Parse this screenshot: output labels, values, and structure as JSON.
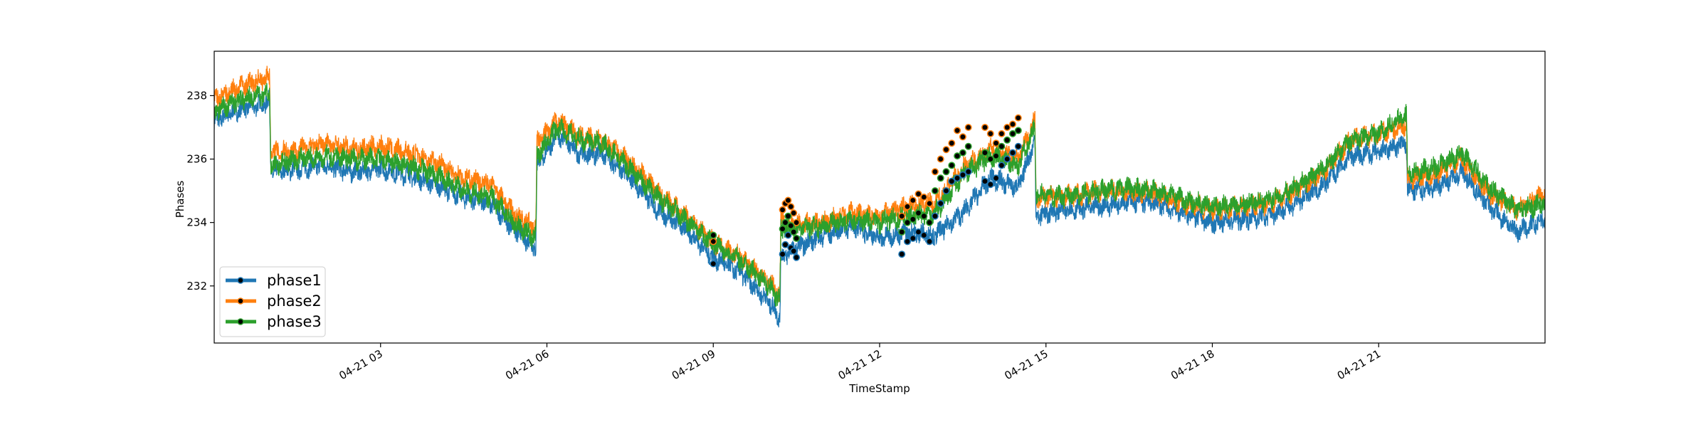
{
  "chart_data": {
    "type": "line",
    "title": "",
    "xlabel": "TimeStamp",
    "ylabel": "Phases",
    "xlim": [
      "04-21 00:00",
      "04-22 00:00"
    ],
    "ylim": [
      230.2,
      239.4
    ],
    "x_ticks": [
      {
        "t": 3,
        "label": "04-21 03"
      },
      {
        "t": 6,
        "label": "04-21 06"
      },
      {
        "t": 9,
        "label": "04-21 09"
      },
      {
        "t": 12,
        "label": "04-21 12"
      },
      {
        "t": 15,
        "label": "04-21 15"
      },
      {
        "t": 18,
        "label": "04-21 18"
      },
      {
        "t": 21,
        "label": "04-21 21"
      }
    ],
    "y_ticks": [
      232,
      234,
      236,
      238
    ],
    "grid": false,
    "legend_position": "lower-left",
    "x_hours": [
      0,
      0.5,
      1.0,
      1.02,
      1.5,
      2,
      2.5,
      3,
      3.5,
      4,
      4.5,
      5,
      5.4,
      5.8,
      5.82,
      6.2,
      6.6,
      7.0,
      7.5,
      8.0,
      8.5,
      9.0,
      9.5,
      10.0,
      10.2,
      10.22,
      10.5,
      11.0,
      11.5,
      12.0,
      12.5,
      13.0,
      13.5,
      14.0,
      14.5,
      14.8,
      14.82,
      15.3,
      16.0,
      16.5,
      17.0,
      17.5,
      18.0,
      18.5,
      19.0,
      19.5,
      20.0,
      20.5,
      21.0,
      21.5,
      21.52,
      22.0,
      22.5,
      23.0,
      23.5,
      24.0
    ],
    "series": [
      {
        "name": "phase1",
        "color": "#1f77b4",
        "values": [
          237.2,
          237.6,
          237.8,
          235.6,
          235.7,
          235.8,
          235.6,
          235.7,
          235.5,
          235.2,
          234.8,
          234.6,
          233.8,
          233.2,
          235.8,
          236.8,
          236.1,
          236.2,
          235.4,
          234.4,
          233.8,
          232.9,
          232.4,
          231.5,
          231.0,
          232.9,
          233.2,
          233.6,
          233.9,
          233.5,
          233.7,
          233.6,
          234.3,
          235.4,
          235.1,
          236.6,
          234.2,
          234.4,
          234.5,
          234.7,
          234.6,
          234.3,
          234.0,
          234.1,
          234.2,
          234.6,
          235.2,
          236.1,
          236.2,
          236.5,
          235.0,
          235.1,
          235.6,
          234.5,
          233.7,
          234.1
        ]
      },
      {
        "name": "phase2",
        "color": "#ff7f0e",
        "values": [
          237.9,
          238.3,
          238.6,
          236.2,
          236.3,
          236.5,
          236.3,
          236.4,
          236.2,
          235.9,
          235.4,
          235.2,
          234.3,
          233.8,
          236.5,
          237.2,
          236.7,
          236.6,
          235.9,
          235.0,
          234.2,
          233.4,
          232.9,
          232.1,
          231.7,
          234.1,
          233.9,
          234.0,
          234.3,
          234.2,
          234.5,
          234.6,
          235.7,
          236.3,
          236.0,
          237.2,
          234.8,
          234.8,
          235.0,
          235.0,
          234.9,
          234.6,
          234.4,
          234.5,
          234.6,
          235.0,
          235.6,
          236.6,
          236.8,
          237.1,
          235.4,
          235.5,
          236.0,
          234.9,
          234.4,
          234.9
        ]
      },
      {
        "name": "phase3",
        "color": "#2ca02c",
        "values": [
          237.5,
          237.9,
          238.1,
          235.8,
          236.0,
          236.1,
          236.0,
          236.0,
          235.8,
          235.5,
          235.0,
          234.8,
          234.0,
          233.5,
          236.1,
          237.0,
          236.6,
          236.5,
          235.7,
          234.8,
          234.1,
          233.3,
          232.8,
          232.0,
          231.5,
          233.8,
          233.8,
          233.9,
          234.1,
          234.0,
          234.2,
          234.3,
          235.5,
          236.1,
          235.8,
          237.0,
          234.9,
          234.8,
          235.0,
          235.1,
          235.0,
          234.7,
          234.5,
          234.6,
          234.7,
          235.1,
          235.7,
          236.6,
          236.8,
          237.4,
          235.6,
          235.7,
          236.2,
          235.1,
          234.4,
          234.6
        ]
      }
    ],
    "markers": [
      {
        "series": "phase1",
        "x": [
          10.25,
          10.3,
          10.35,
          10.4,
          10.45,
          10.5,
          12.4,
          12.5,
          12.6,
          12.7,
          12.8,
          12.9,
          13.0,
          13.1,
          13.2,
          13.3,
          13.4,
          13.5,
          13.6,
          13.9,
          14.0,
          14.1,
          14.2,
          14.3,
          14.4,
          14.5,
          9.0
        ],
        "y": [
          233.0,
          233.3,
          233.6,
          233.2,
          233.1,
          232.9,
          233.0,
          233.4,
          233.5,
          233.7,
          233.6,
          233.4,
          234.2,
          234.6,
          235.0,
          235.3,
          235.4,
          235.5,
          235.6,
          235.3,
          235.2,
          235.4,
          235.8,
          236.0,
          236.2,
          236.4,
          232.7
        ]
      },
      {
        "series": "phase2",
        "x": [
          10.25,
          10.3,
          10.35,
          10.4,
          10.45,
          10.5,
          12.4,
          12.5,
          12.6,
          12.7,
          12.8,
          12.9,
          13.0,
          13.1,
          13.2,
          13.3,
          13.4,
          13.5,
          13.6,
          13.9,
          14.0,
          14.1,
          14.2,
          14.3,
          14.4,
          14.5,
          9.0
        ],
        "y": [
          234.4,
          234.6,
          234.7,
          234.5,
          234.3,
          234.0,
          234.2,
          234.5,
          234.7,
          234.9,
          234.8,
          234.6,
          235.6,
          236.0,
          236.3,
          236.5,
          236.9,
          236.7,
          237.0,
          237.0,
          236.8,
          236.5,
          236.8,
          237.0,
          237.1,
          237.3,
          233.4
        ]
      },
      {
        "series": "phase3",
        "x": [
          10.25,
          10.3,
          10.35,
          10.4,
          10.45,
          10.5,
          12.4,
          12.5,
          12.6,
          12.7,
          12.8,
          12.9,
          13.0,
          13.1,
          13.2,
          13.3,
          13.4,
          13.5,
          13.6,
          13.9,
          14.0,
          14.1,
          14.2,
          14.3,
          14.4,
          14.5,
          9.0
        ],
        "y": [
          233.8,
          234.0,
          234.2,
          233.9,
          233.7,
          233.5,
          233.7,
          234.0,
          234.1,
          234.3,
          234.2,
          234.0,
          235.0,
          235.4,
          235.6,
          235.8,
          236.1,
          236.2,
          236.4,
          236.2,
          236.0,
          236.1,
          236.4,
          236.6,
          236.8,
          236.9,
          233.6
        ]
      }
    ]
  }
}
